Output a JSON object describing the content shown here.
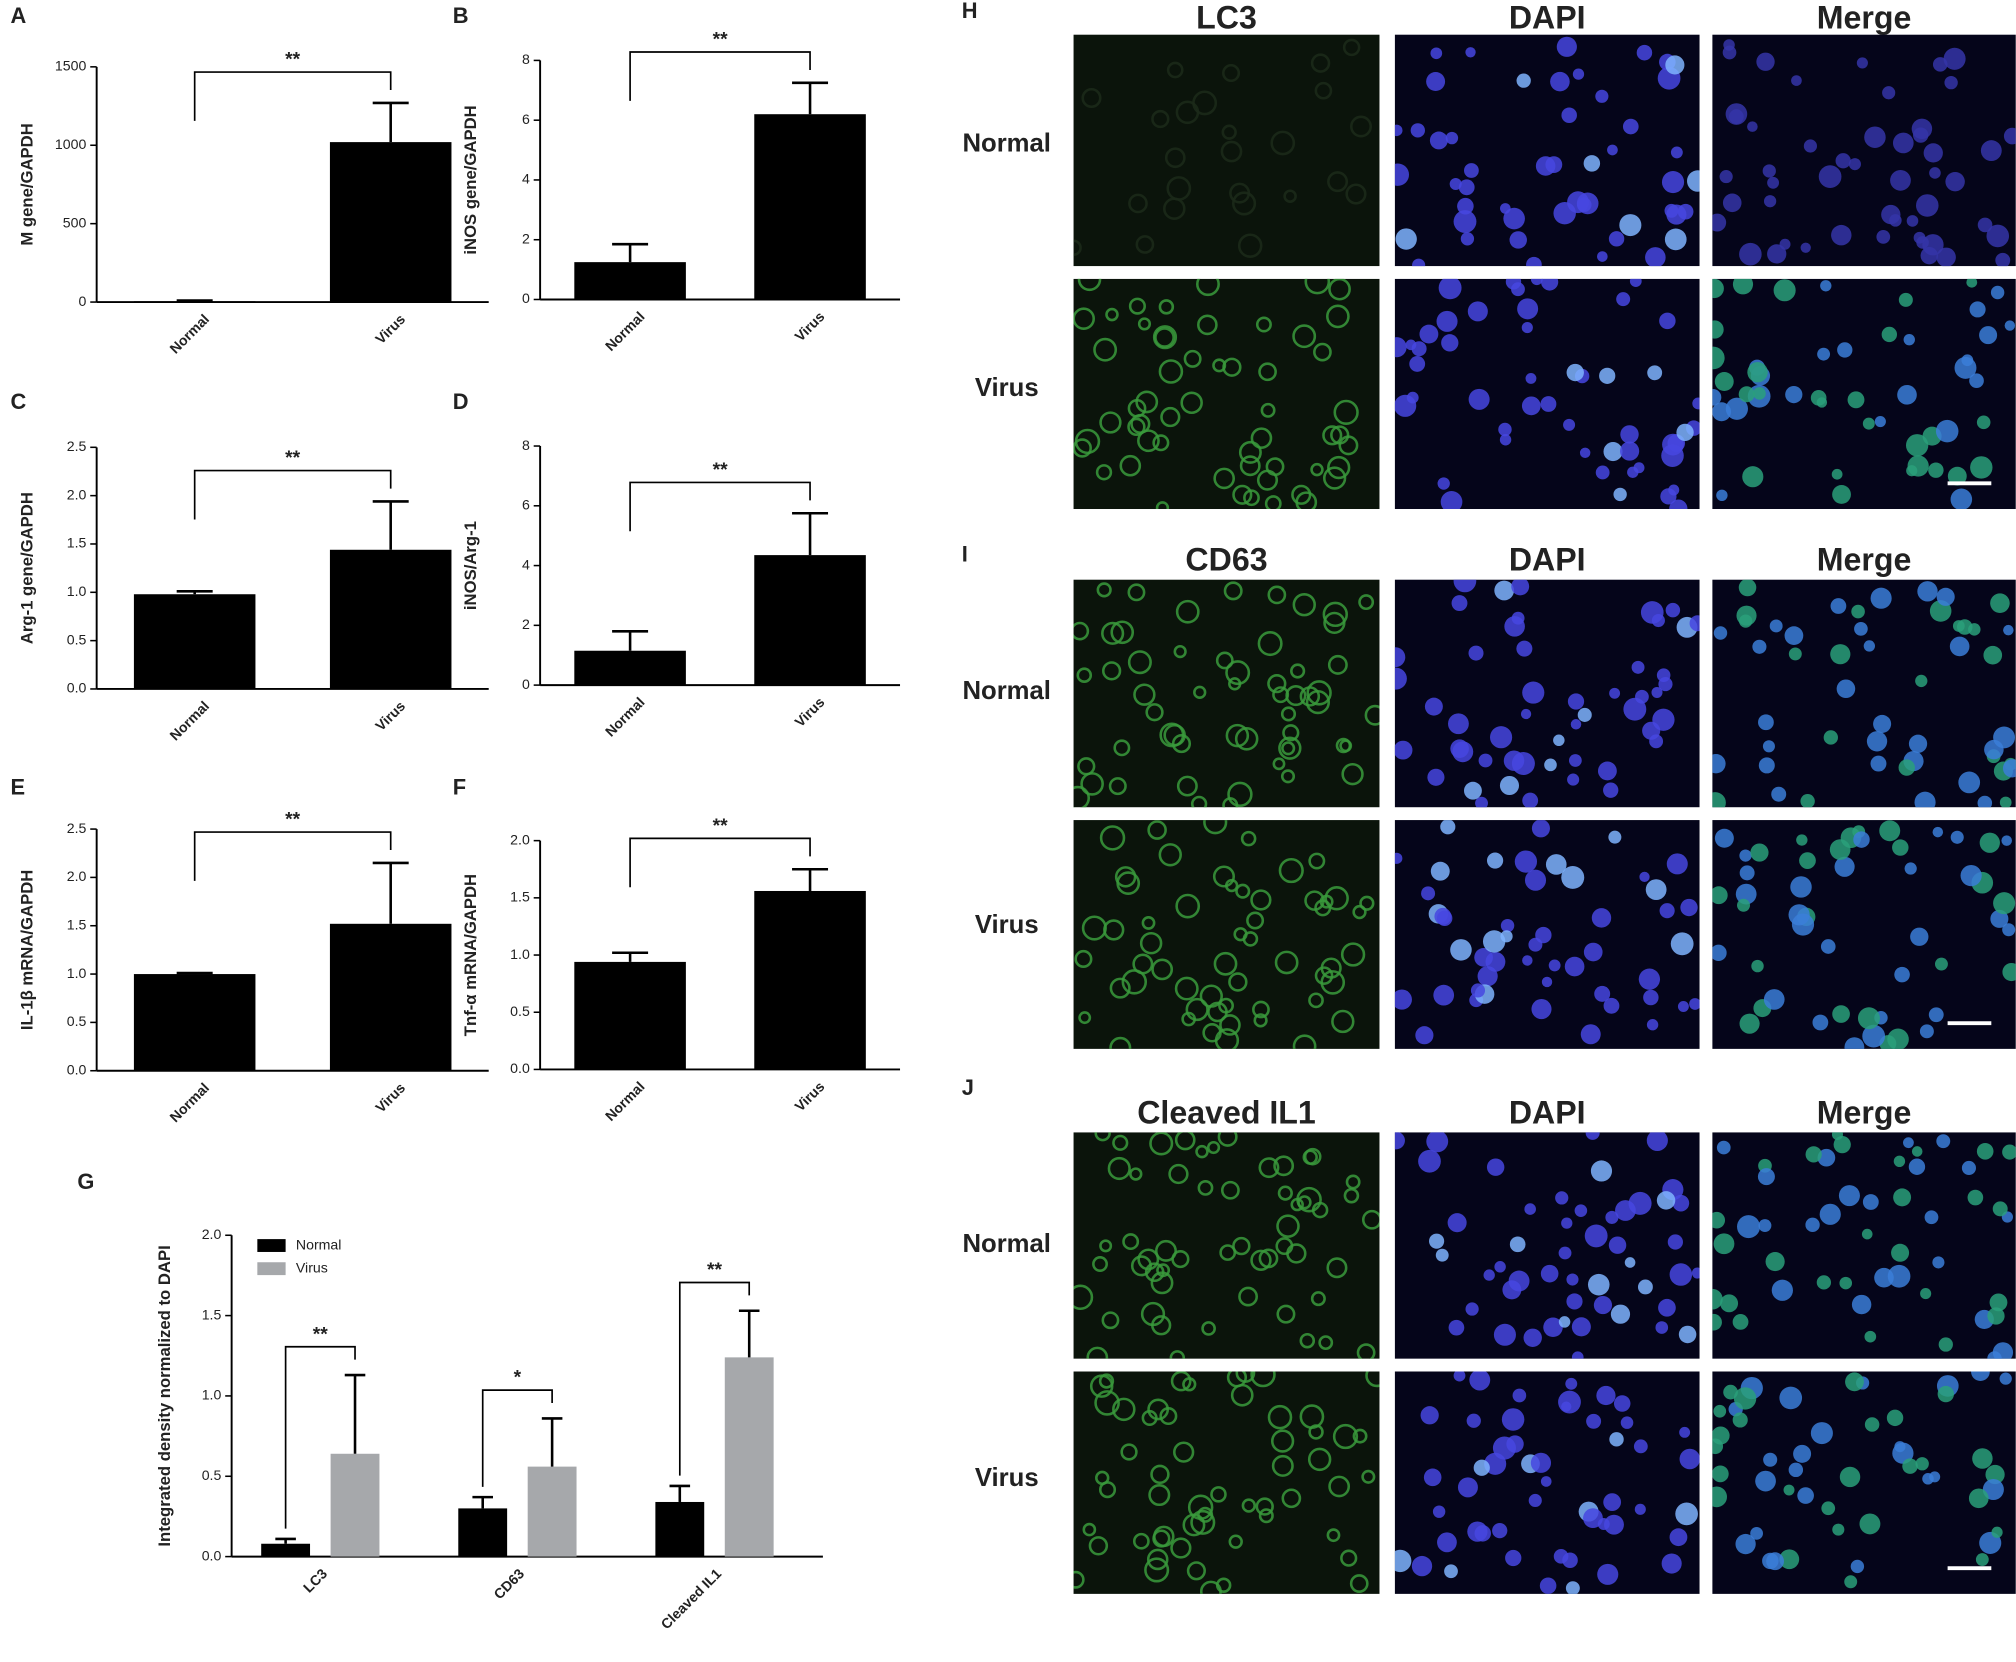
{
  "chart_data": [
    {
      "type": "bar",
      "label": "A",
      "ylabel": "M gene/GAPDH",
      "categories": [
        "Normal",
        "Virus"
      ],
      "values": [
        5,
        1020
      ],
      "errors": [
        5,
        250
      ],
      "color": "#000000",
      "ylim": [
        0,
        1500
      ],
      "yticks": [
        0,
        500,
        1000,
        1500
      ],
      "significance": [
        "**"
      ]
    },
    {
      "type": "bar",
      "label": "B",
      "ylabel": "iNOS gene/GAPDH",
      "categories": [
        "Normal",
        "Virus"
      ],
      "values": [
        1.25,
        6.2
      ],
      "errors": [
        0.6,
        1.05
      ],
      "color": "#000000",
      "ylim": [
        0,
        8
      ],
      "yticks": [
        0,
        2,
        4,
        6,
        8
      ],
      "significance": [
        "**"
      ]
    },
    {
      "type": "bar",
      "label": "C",
      "ylabel": "Arg-1 gene/GAPDH",
      "categories": [
        "Normal",
        "Virus"
      ],
      "values": [
        0.98,
        1.44
      ],
      "errors": [
        0.03,
        0.5
      ],
      "color": "#000000",
      "ylim": [
        0,
        2.5
      ],
      "yticks": [
        {
          "value": 0,
          "label": "0.0"
        },
        0.5,
        {
          "value": 1,
          "label": "1.0"
        },
        1.5,
        {
          "value": 2,
          "label": "2.0"
        },
        2.5
      ],
      "significance": [
        "**"
      ]
    },
    {
      "type": "bar",
      "label": "D",
      "ylabel": "iNOS/Arg-1",
      "categories": [
        "Normal",
        "Virus"
      ],
      "values": [
        1.15,
        4.35
      ],
      "errors": [
        0.65,
        1.4
      ],
      "color": "#000000",
      "ylim": [
        0,
        8
      ],
      "yticks": [
        0,
        2,
        4,
        6,
        8
      ],
      "significance": [
        "**"
      ]
    },
    {
      "type": "bar",
      "label": "E",
      "ylabel": "IL-1β mRNA/GAPDH",
      "categories": [
        "Normal",
        "Virus"
      ],
      "values": [
        1.0,
        1.52
      ],
      "errors": [
        0.01,
        0.63
      ],
      "color": "#000000",
      "ylim": [
        0,
        2.5
      ],
      "yticks": [
        {
          "value": 0,
          "label": "0.0"
        },
        0.5,
        {
          "value": 1,
          "label": "1.0"
        },
        1.5,
        {
          "value": 2,
          "label": "2.0"
        },
        2.5
      ],
      "significance": [
        "**"
      ]
    },
    {
      "type": "bar",
      "label": "F",
      "ylabel": "Tnf-α mRNA/GAPDH",
      "categories": [
        "Normal",
        "Virus"
      ],
      "values": [
        0.94,
        1.56
      ],
      "errors": [
        0.08,
        0.19
      ],
      "color": "#000000",
      "ylim": [
        0,
        2.0
      ],
      "yticks": [
        {
          "value": 0,
          "label": "0.0"
        },
        0.5,
        {
          "value": 1,
          "label": "1.0"
        },
        1.5,
        {
          "value": 2,
          "label": "2.0"
        }
      ],
      "significance": [
        "**"
      ]
    },
    {
      "type": "grouped_bar",
      "label": "G",
      "ylabel": "Integrated density normalized to DAPI",
      "categories": [
        "LC3",
        "CD63",
        "Cleaved IL1"
      ],
      "series": [
        {
          "name": "Normal",
          "color": "#000000",
          "values": [
            0.08,
            0.3,
            0.34
          ],
          "errors": [
            0.03,
            0.07,
            0.1
          ]
        },
        {
          "name": "Virus",
          "color": "#a6a8ab",
          "values": [
            0.64,
            0.56,
            1.24
          ],
          "errors": [
            0.49,
            0.3,
            0.29
          ]
        }
      ],
      "ylim": [
        0,
        2.0
      ],
      "yticks": [
        {
          "value": 0,
          "label": "0.0"
        },
        0.5,
        {
          "value": 1,
          "label": "1.0"
        },
        1.5,
        {
          "value": 2,
          "label": "2.0"
        }
      ],
      "significance": [
        "**",
        "*",
        "**"
      ]
    }
  ],
  "micrographs": [
    {
      "label": "H",
      "columns": [
        "LC3",
        "DAPI",
        "Merge"
      ],
      "rows": [
        "Normal",
        "Virus"
      ]
    },
    {
      "label": "I",
      "columns": [
        "CD63",
        "DAPI",
        "Merge"
      ],
      "rows": [
        "Normal",
        "Virus"
      ]
    },
    {
      "label": "J",
      "columns": [
        "Cleaved IL1",
        "DAPI",
        "Merge"
      ],
      "rows": [
        "Normal",
        "Virus"
      ]
    }
  ]
}
